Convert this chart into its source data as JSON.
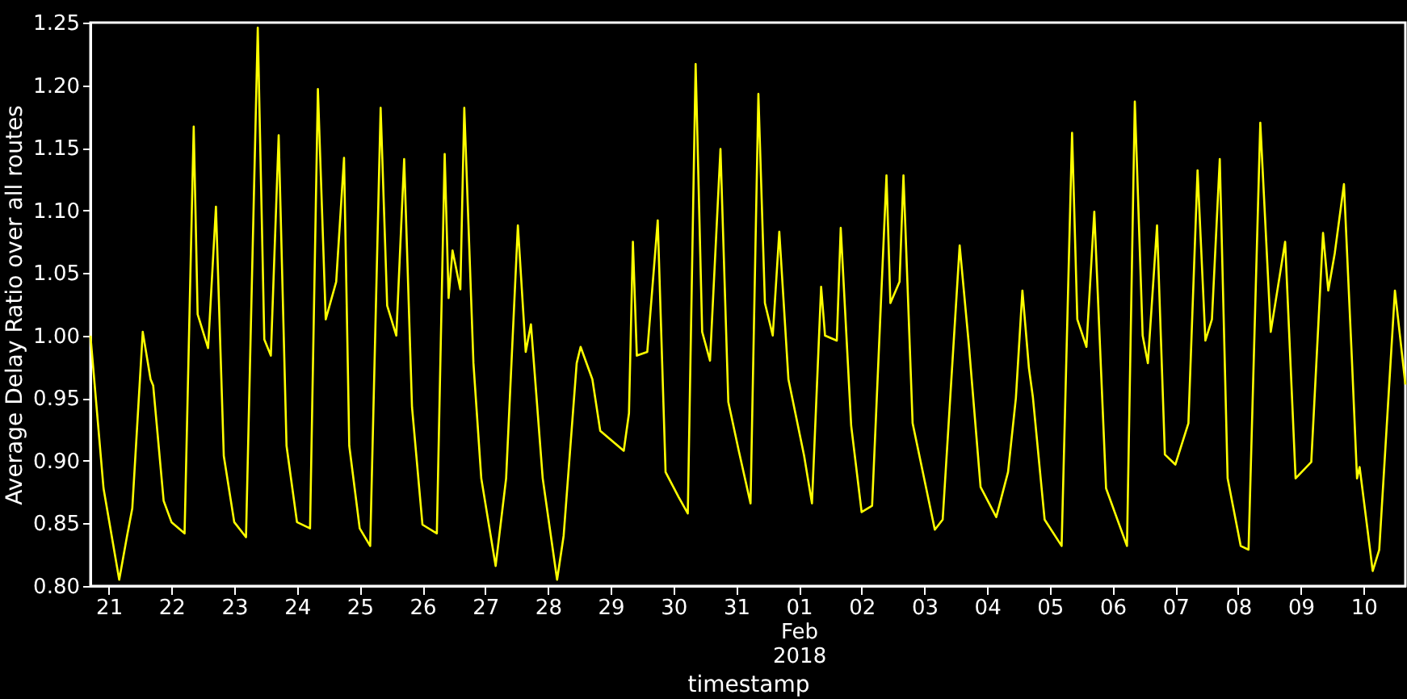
{
  "chart_data": {
    "type": "line",
    "xlabel": "timestamp",
    "ylabel": "Average Delay Ratio over all routes",
    "xlim": [
      "2018-01-20T17:00",
      "2018-02-10T16:00"
    ],
    "xticks": [
      {
        "value": "2018-01-21",
        "label": "21"
      },
      {
        "value": "2018-01-22",
        "label": "22"
      },
      {
        "value": "2018-01-23",
        "label": "23"
      },
      {
        "value": "2018-01-24",
        "label": "24"
      },
      {
        "value": "2018-01-25",
        "label": "25"
      },
      {
        "value": "2018-01-26",
        "label": "26"
      },
      {
        "value": "2018-01-27",
        "label": "27"
      },
      {
        "value": "2018-01-28",
        "label": "28"
      },
      {
        "value": "2018-01-29",
        "label": "29"
      },
      {
        "value": "2018-01-30",
        "label": "30"
      },
      {
        "value": "2018-01-31",
        "label": "31"
      },
      {
        "value": "2018-02-01",
        "label": "01\nFeb\n2018"
      },
      {
        "value": "2018-02-02",
        "label": "02"
      },
      {
        "value": "2018-02-03",
        "label": "03"
      },
      {
        "value": "2018-02-04",
        "label": "04"
      },
      {
        "value": "2018-02-05",
        "label": "05"
      },
      {
        "value": "2018-02-06",
        "label": "06"
      },
      {
        "value": "2018-02-07",
        "label": "07"
      },
      {
        "value": "2018-02-08",
        "label": "08"
      },
      {
        "value": "2018-02-09",
        "label": "09"
      },
      {
        "value": "2018-02-10",
        "label": "10"
      }
    ],
    "ylim": [
      0.8,
      1.25
    ],
    "yticks": [
      {
        "value": 0.8,
        "label": "0.80"
      },
      {
        "value": 0.85,
        "label": "0.85"
      },
      {
        "value": 0.9,
        "label": "0.90"
      },
      {
        "value": 0.95,
        "label": "0.95"
      },
      {
        "value": 1.0,
        "label": "1.00"
      },
      {
        "value": 1.05,
        "label": "1.05"
      },
      {
        "value": 1.1,
        "label": "1.10"
      },
      {
        "value": 1.15,
        "label": "1.15"
      },
      {
        "value": 1.2,
        "label": "1.20"
      },
      {
        "value": 1.25,
        "label": "1.25"
      }
    ],
    "grid": false,
    "line_style": "solid",
    "marker": "none",
    "series": [
      {
        "color": "#ffff00",
        "x": [
          "2018-01-20T17:00",
          "2018-01-20T22:00",
          "2018-01-21T04:00",
          "2018-01-21T07:00",
          "2018-01-21T09:00",
          "2018-01-21T13:00",
          "2018-01-21T16:00",
          "2018-01-21T17:00",
          "2018-01-21T21:00",
          "2018-01-22T00:00",
          "2018-01-22T05:00",
          "2018-01-22T08:30",
          "2018-01-22T10:00",
          "2018-01-22T14:00",
          "2018-01-22T17:00",
          "2018-01-22T20:00",
          "2018-01-23T00:00",
          "2018-01-23T04:30",
          "2018-01-23T09:00",
          "2018-01-23T11:30",
          "2018-01-23T14:00",
          "2018-01-23T17:00",
          "2018-01-23T20:00",
          "2018-01-24T00:00",
          "2018-01-24T05:00",
          "2018-01-24T08:00",
          "2018-01-24T11:00",
          "2018-01-24T15:00",
          "2018-01-24T18:00",
          "2018-01-24T20:00",
          "2018-01-25T00:00",
          "2018-01-25T04:00",
          "2018-01-25T08:00",
          "2018-01-25T10:30",
          "2018-01-25T14:00",
          "2018-01-25T17:00",
          "2018-01-25T20:00",
          "2018-01-26T00:00",
          "2018-01-26T05:30",
          "2018-01-26T08:30",
          "2018-01-26T10:00",
          "2018-01-26T11:30",
          "2018-01-26T14:30",
          "2018-01-26T16:00",
          "2018-01-26T19:30",
          "2018-01-26T22:30",
          "2018-01-27T04:00",
          "2018-01-27T08:00",
          "2018-01-27T12:30",
          "2018-01-27T15:30",
          "2018-01-27T17:30",
          "2018-01-27T22:00",
          "2018-01-28T03:30",
          "2018-01-28T06:00",
          "2018-01-28T11:00",
          "2018-01-28T12:30",
          "2018-01-28T17:00",
          "2018-01-28T20:00",
          "2018-01-29T05:00",
          "2018-01-29T07:00",
          "2018-01-29T08:30",
          "2018-01-29T10:00",
          "2018-01-29T14:00",
          "2018-01-29T18:00",
          "2018-01-29T21:00",
          "2018-01-30T02:00",
          "2018-01-30T05:30",
          "2018-01-30T08:30",
          "2018-01-30T11:00",
          "2018-01-30T14:00",
          "2018-01-30T18:00",
          "2018-01-30T21:00",
          "2018-01-31T01:00",
          "2018-01-31T05:30",
          "2018-01-31T08:30",
          "2018-01-31T11:00",
          "2018-01-31T14:00",
          "2018-01-31T16:30",
          "2018-01-31T20:00",
          "2018-02-01T02:00",
          "2018-02-01T05:00",
          "2018-02-01T08:30",
          "2018-02-01T10:00",
          "2018-02-01T14:30",
          "2018-02-01T16:00",
          "2018-02-01T20:00",
          "2018-02-02T00:00",
          "2018-02-02T04:00",
          "2018-02-02T09:30",
          "2018-02-02T11:00",
          "2018-02-02T14:30",
          "2018-02-02T16:00",
          "2018-02-02T19:30",
          "2018-02-03T04:00",
          "2018-02-03T07:00",
          "2018-02-03T13:30",
          "2018-02-03T17:00",
          "2018-02-03T21:30",
          "2018-02-04T03:30",
          "2018-02-04T08:00",
          "2018-02-04T11:00",
          "2018-02-04T13:30",
          "2018-02-04T16:00",
          "2018-02-04T17:30",
          "2018-02-04T22:00",
          "2018-02-05T04:30",
          "2018-02-05T08:30",
          "2018-02-05T10:30",
          "2018-02-05T14:00",
          "2018-02-05T17:00",
          "2018-02-05T21:30",
          "2018-02-06T05:30",
          "2018-02-06T08:30",
          "2018-02-06T11:30",
          "2018-02-06T13:30",
          "2018-02-06T17:00",
          "2018-02-06T20:00",
          "2018-02-07T00:00",
          "2018-02-07T05:00",
          "2018-02-07T08:30",
          "2018-02-07T11:30",
          "2018-02-07T14:00",
          "2018-02-07T17:00",
          "2018-02-07T20:00",
          "2018-02-08T01:00",
          "2018-02-08T04:00",
          "2018-02-08T08:30",
          "2018-02-08T12:30",
          "2018-02-08T18:00",
          "2018-02-08T22:00",
          "2018-02-09T04:00",
          "2018-02-09T08:30",
          "2018-02-09T10:30",
          "2018-02-09T13:00",
          "2018-02-09T16:30",
          "2018-02-09T19:30",
          "2018-02-09T21:30",
          "2018-02-09T22:30",
          "2018-02-10T03:30",
          "2018-02-10T06:00",
          "2018-02-10T12:00",
          "2018-02-10T16:00"
        ],
        "values": [
          1.0,
          0.878,
          0.805,
          0.84,
          0.862,
          1.003,
          0.965,
          0.96,
          0.868,
          0.851,
          0.842,
          1.167,
          1.017,
          0.99,
          1.103,
          0.904,
          0.851,
          0.839,
          1.246,
          0.997,
          0.984,
          1.16,
          0.912,
          0.851,
          0.846,
          1.197,
          1.013,
          1.043,
          1.142,
          0.912,
          0.846,
          0.832,
          1.182,
          1.024,
          1.0,
          1.141,
          0.943,
          0.849,
          0.842,
          1.145,
          1.03,
          1.068,
          1.037,
          1.182,
          0.978,
          0.886,
          0.816,
          0.886,
          1.088,
          0.987,
          1.009,
          0.886,
          0.805,
          0.84,
          0.978,
          0.991,
          0.965,
          0.924,
          0.908,
          0.938,
          1.075,
          0.984,
          0.987,
          1.092,
          0.891,
          0.871,
          0.858,
          1.217,
          1.003,
          0.98,
          1.149,
          0.947,
          0.908,
          0.866,
          1.193,
          1.026,
          1.0,
          1.083,
          0.965,
          0.904,
          0.866,
          1.039,
          1.0,
          0.996,
          1.086,
          0.928,
          0.859,
          0.864,
          1.128,
          1.026,
          1.043,
          1.128,
          0.93,
          0.845,
          0.853,
          1.072,
          0.993,
          0.879,
          0.855,
          0.891,
          0.95,
          1.036,
          0.974,
          0.951,
          0.853,
          0.832,
          1.162,
          1.013,
          0.991,
          1.099,
          0.878,
          0.832,
          1.187,
          1.0,
          0.978,
          1.088,
          0.905,
          0.897,
          0.93,
          1.132,
          0.996,
          1.013,
          1.141,
          0.886,
          0.832,
          0.829,
          1.17,
          1.003,
          1.075,
          0.886,
          0.899,
          1.082,
          1.036,
          1.066,
          1.121,
          0.983,
          0.886,
          0.895,
          0.812,
          0.829,
          1.036,
          0.961
        ]
      }
    ]
  }
}
